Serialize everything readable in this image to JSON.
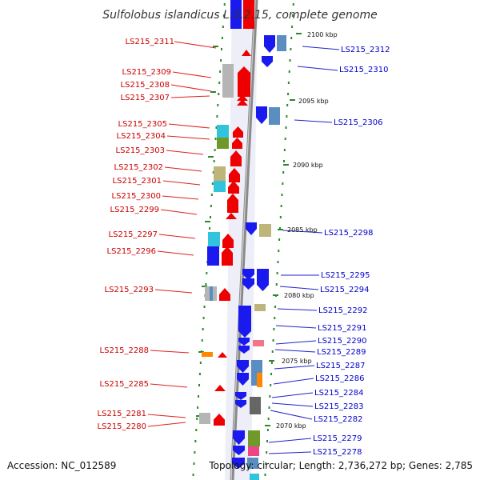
{
  "title": "Sulfolobus islandicus L.S.2.15, complete genome",
  "footer": {
    "accession": "Accession: NC_012589",
    "summary": "Topology: circular; Length: 2,736,272 bp; Genes: 2,785"
  },
  "kbp_labels": [
    "2100 kbp",
    "2095 kbp",
    "2090 kbp",
    "2085 kbp",
    "2080 kbp",
    "2075 kbp",
    "2070 kbp"
  ],
  "left_labels": [
    "LS215_2311",
    "LS215_2309",
    "LS215_2308",
    "LS215_2307",
    "LS215_2305",
    "LS215_2304",
    "LS215_2303",
    "LS215_2302",
    "LS215_2301",
    "LS215_2300",
    "LS215_2299",
    "LS215_2297",
    "LS215_2296",
    "LS215_2293",
    "LS215_2288",
    "LS215_2285",
    "LS215_2281",
    "LS215_2280"
  ],
  "right_labels": [
    "LS215_2312",
    "LS215_2310",
    "LS215_2306",
    "LS215_2298",
    "LS215_2295",
    "LS215_2294",
    "LS215_2292",
    "LS215_2291",
    "LS215_2290",
    "LS215_2289",
    "LS215_2287",
    "LS215_2286",
    "LS215_2284",
    "LS215_2283",
    "LS215_2282",
    "LS215_2279",
    "LS215_2278"
  ],
  "colors": {
    "forward_gene": "#ee0000",
    "reverse_gene": "#1a1aee",
    "left_label": "#cc0000",
    "right_label": "#0000cc",
    "backbone": "#888888",
    "tick": "#2a8a2a",
    "cyan": "#33c4dd",
    "olive": "#bdb57a",
    "gray": "#b5b5b5",
    "steelblue": "#5a8ec0",
    "green": "#6f9a2a",
    "orange": "#ff8800",
    "pink": "#ee4488"
  }
}
